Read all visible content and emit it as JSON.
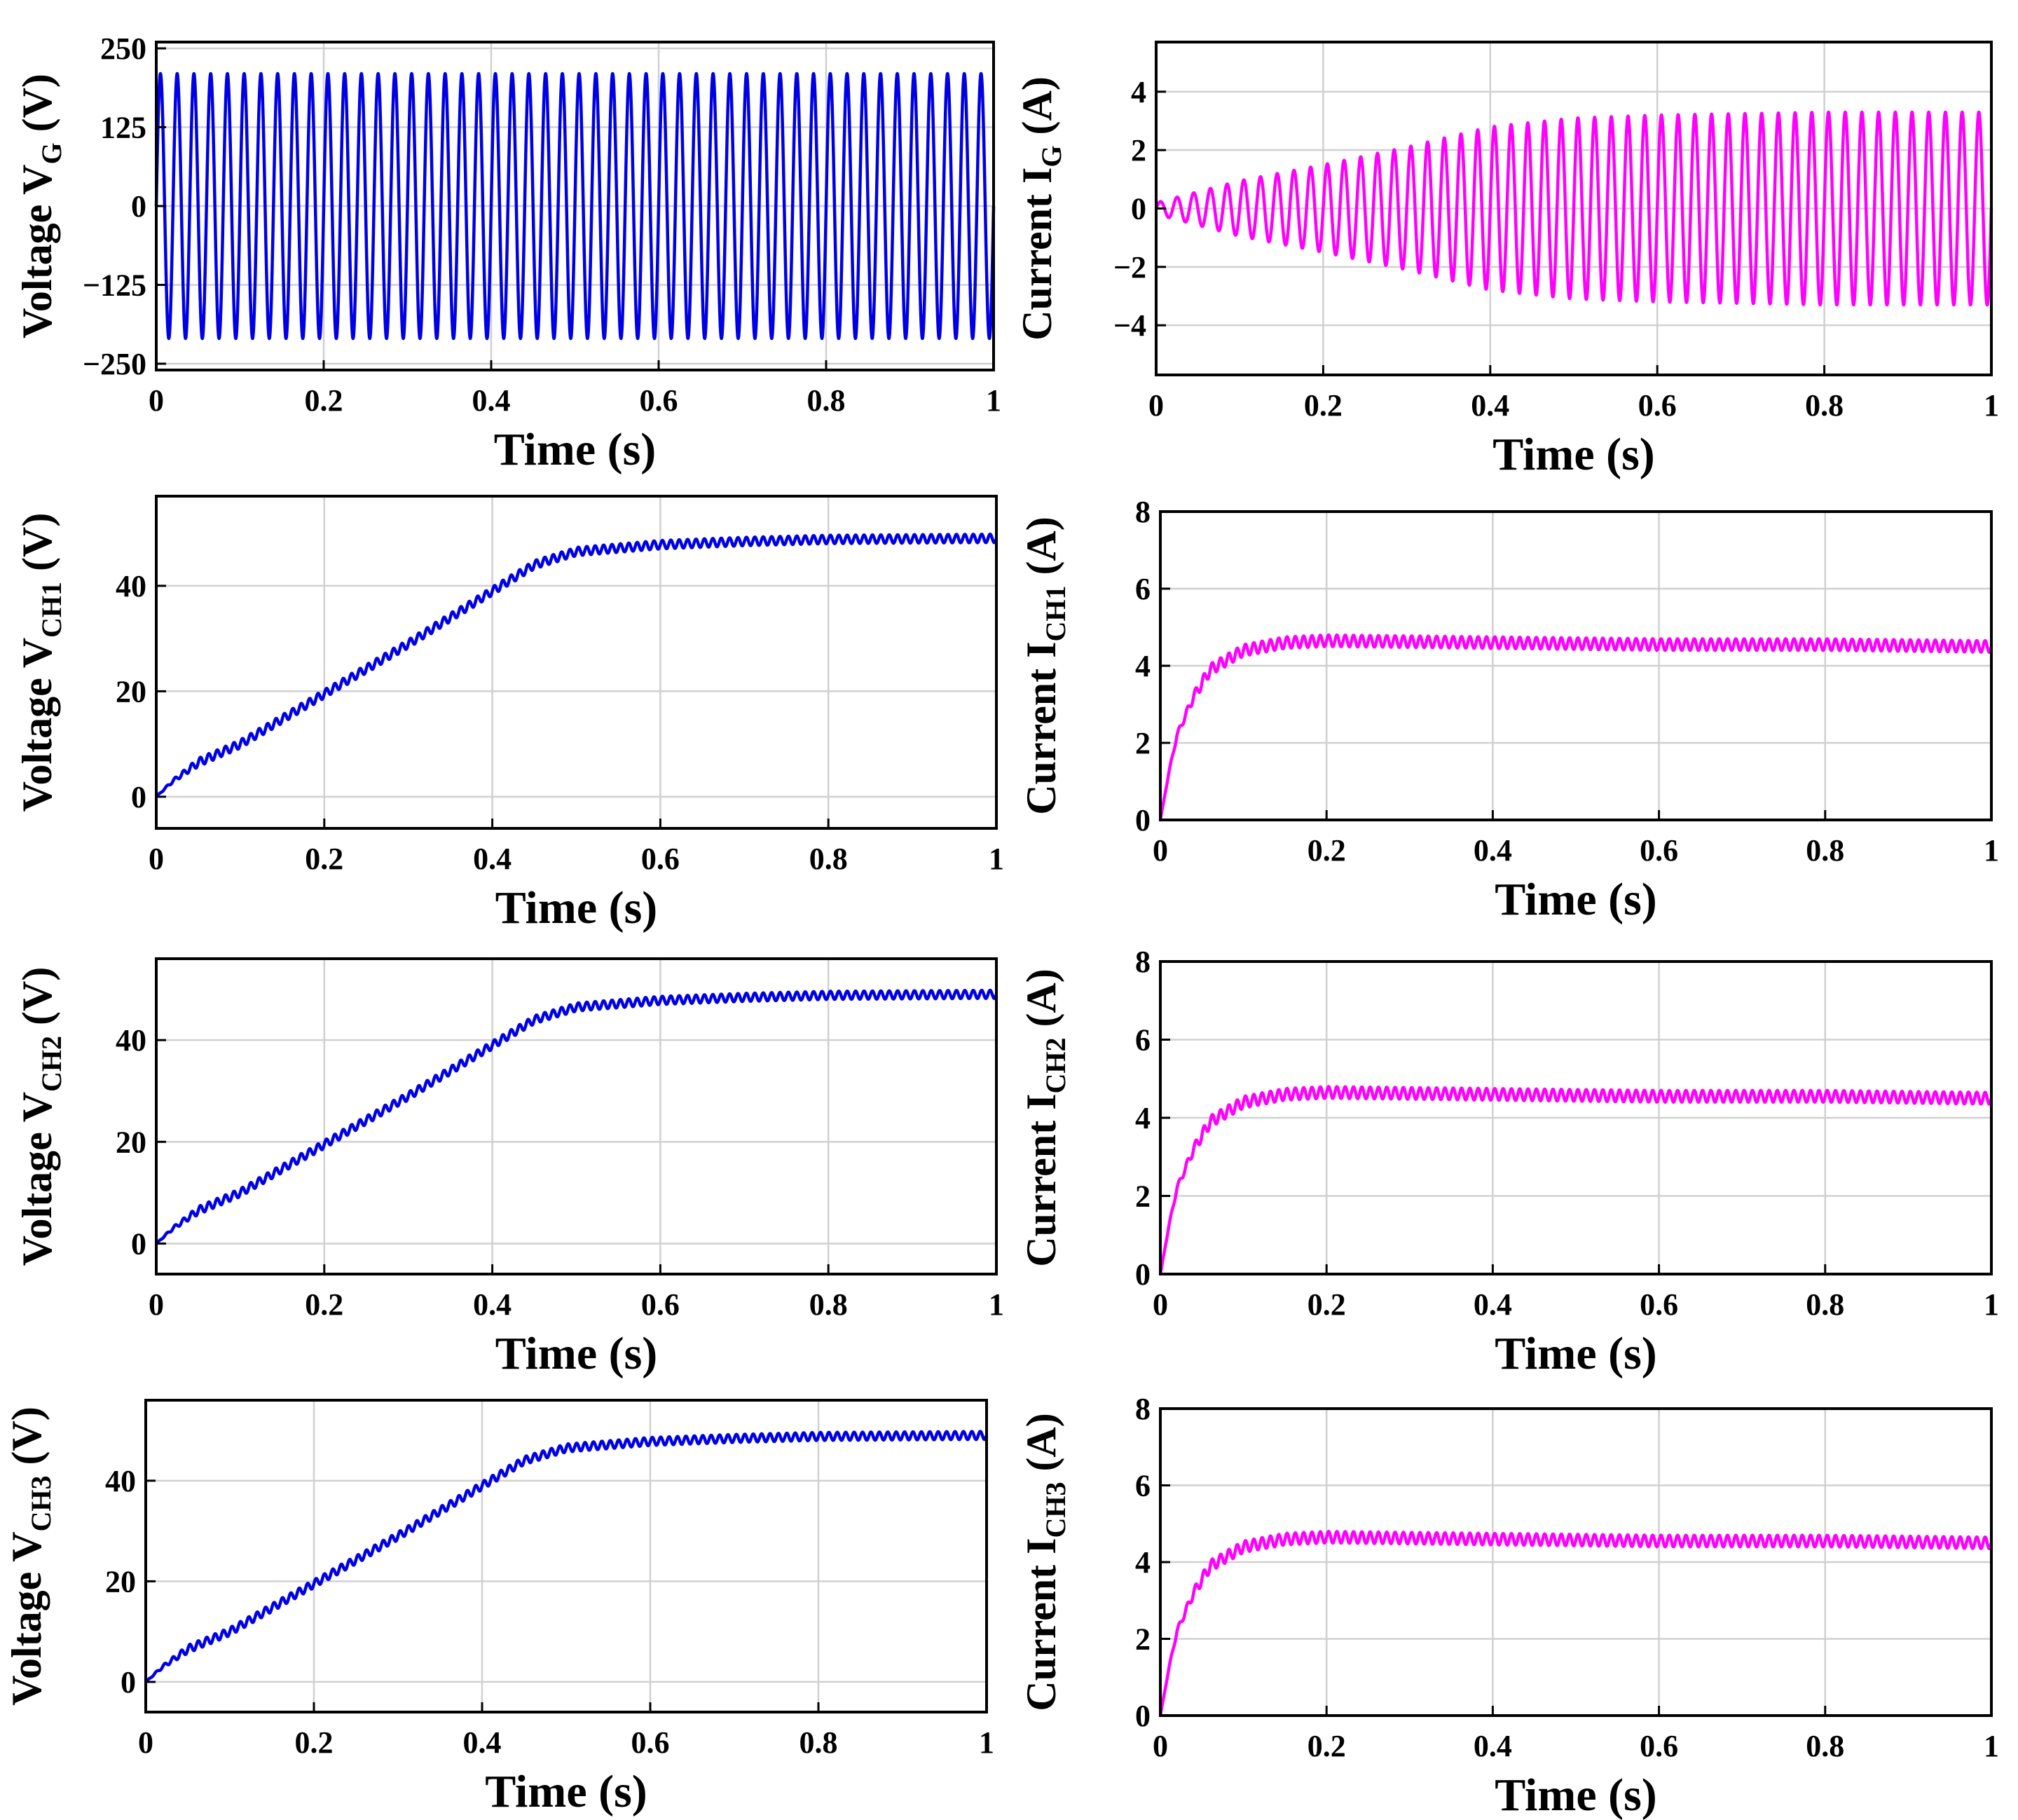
{
  "chart_data": [
    {
      "type": "line",
      "id": "vg",
      "ylabel": {
        "base": "Voltage V",
        "sub": "G",
        "unit": " (V)"
      },
      "xlabel": "Time (s)",
      "xlim": [
        0,
        1
      ],
      "ylim": [
        -260,
        260
      ],
      "xticks": [
        0,
        0.2,
        0.4,
        0.6,
        0.8,
        1
      ],
      "xtick_labels": [
        "0",
        "0.2",
        "0.4",
        "0.6",
        "0.8",
        "1"
      ],
      "yticks": [
        250,
        125,
        0,
        -125,
        -250
      ],
      "ytick_labels": [
        "250",
        "125",
        "0",
        "−125",
        "−250"
      ],
      "color": "#0000e6",
      "signal": {
        "kind": "sine",
        "amplitude": 210,
        "frequency_hz": 50,
        "cycles": 50
      }
    },
    {
      "type": "line",
      "id": "ig",
      "ylabel": {
        "base": "Current I",
        "sub": "G",
        "unit": " (A)"
      },
      "xlabel": "Time (s)",
      "xlim": [
        0,
        1
      ],
      "ylim": [
        -5.7,
        5.7
      ],
      "xticks": [
        0,
        0.2,
        0.4,
        0.6,
        0.8,
        1
      ],
      "xtick_labels": [
        "0",
        "0.2",
        "0.4",
        "0.6",
        "0.8",
        "1"
      ],
      "yticks": [
        4,
        2,
        0,
        -2,
        -4
      ],
      "ytick_labels": [
        "4",
        "2",
        "0",
        "−2",
        "−4"
      ],
      "color": "#ff00ff",
      "signal": {
        "kind": "growing-sine",
        "frequency_hz": 50,
        "amplitude_envelope": {
          "t": [
            0,
            0.1,
            0.2,
            0.3,
            0.4,
            0.5,
            0.6,
            0.7,
            0.8,
            1.0
          ],
          "a": [
            0.2,
            0.95,
            1.5,
            2.1,
            2.8,
            3.1,
            3.2,
            3.25,
            3.3,
            3.3
          ]
        }
      }
    },
    {
      "type": "line",
      "id": "vch1",
      "ylabel": {
        "base": "Voltage V",
        "sub": "CH1",
        "unit": " (V)"
      },
      "xlabel": "Time (s)",
      "xlim": [
        0,
        1
      ],
      "ylim": [
        -6,
        57
      ],
      "xticks": [
        0,
        0.2,
        0.4,
        0.6,
        0.8,
        1
      ],
      "xtick_labels": [
        "0",
        "0.2",
        "0.4",
        "0.6",
        "0.8",
        "1"
      ],
      "yticks": [
        0,
        20,
        40
      ],
      "ytick_labels": [
        "0",
        "20",
        "40"
      ],
      "color": "#0000e6",
      "signal": {
        "kind": "ramp",
        "t": [
          0,
          0.02,
          0.05,
          0.1,
          0.2,
          0.3,
          0.4,
          0.45,
          0.5,
          0.6,
          0.7,
          0.8,
          1.0
        ],
        "y": [
          0,
          3,
          6.5,
          10,
          19.5,
          29,
          39,
          44,
          46.5,
          47.8,
          48.4,
          48.8,
          49
        ],
        "ripple": 0.8
      }
    },
    {
      "type": "line",
      "id": "ich1",
      "ylabel": {
        "base": "Current I",
        "sub": "CH1",
        "unit": " (A)"
      },
      "xlabel": "Time (s)",
      "xlim": [
        0,
        1
      ],
      "ylim": [
        0,
        8
      ],
      "xticks": [
        0,
        0.2,
        0.4,
        0.6,
        0.8,
        1
      ],
      "xtick_labels": [
        "0",
        "0.2",
        "0.4",
        "0.6",
        "0.8",
        "1"
      ],
      "yticks": [
        0,
        2,
        4,
        6,
        8
      ],
      "ytick_labels": [
        "0",
        "2",
        "4",
        "6",
        "8"
      ],
      "color": "#ff00ff",
      "signal": {
        "kind": "step",
        "t": [
          0,
          0.01,
          0.02,
          0.04,
          0.06,
          0.1,
          0.15,
          0.2,
          0.4,
          0.6,
          0.8,
          1.0
        ],
        "y": [
          0,
          1.2,
          2.2,
          3.2,
          3.9,
          4.4,
          4.6,
          4.65,
          4.6,
          4.55,
          4.55,
          4.5
        ],
        "ripple": 0.15
      }
    },
    {
      "type": "line",
      "id": "vch2",
      "ylabel": {
        "base": "Voltage V",
        "sub": "CH2",
        "unit": " (V)"
      },
      "xlabel": "Time (s)",
      "xlim": [
        0,
        1
      ],
      "ylim": [
        -6,
        56
      ],
      "xticks": [
        0,
        0.2,
        0.4,
        0.6,
        0.8,
        1
      ],
      "xtick_labels": [
        "0",
        "0.2",
        "0.4",
        "0.6",
        "0.8",
        "1"
      ],
      "yticks": [
        0,
        20,
        40
      ],
      "ytick_labels": [
        "0",
        "20",
        "40"
      ],
      "color": "#0000e6",
      "signal": {
        "kind": "ramp",
        "t": [
          0,
          0.02,
          0.05,
          0.1,
          0.2,
          0.3,
          0.4,
          0.45,
          0.5,
          0.6,
          0.7,
          0.8,
          1.0
        ],
        "y": [
          0,
          3,
          6.5,
          10,
          19.5,
          29,
          39,
          44,
          46.5,
          47.8,
          48.4,
          48.8,
          49
        ],
        "ripple": 0.8
      }
    },
    {
      "type": "line",
      "id": "ich2",
      "ylabel": {
        "base": "Current I",
        "sub": "CH2",
        "unit": " (A)"
      },
      "xlabel": "Time (s)",
      "xlim": [
        0,
        1
      ],
      "ylim": [
        0,
        8
      ],
      "xticks": [
        0,
        0.2,
        0.4,
        0.6,
        0.8,
        1
      ],
      "xtick_labels": [
        "0",
        "0.2",
        "0.4",
        "0.6",
        "0.8",
        "1"
      ],
      "yticks": [
        0,
        2,
        4,
        6,
        8
      ],
      "ytick_labels": [
        "0",
        "2",
        "4",
        "6",
        "8"
      ],
      "color": "#ff00ff",
      "signal": {
        "kind": "step",
        "t": [
          0,
          0.01,
          0.02,
          0.04,
          0.06,
          0.1,
          0.15,
          0.2,
          0.4,
          0.6,
          0.8,
          1.0
        ],
        "y": [
          0,
          1.2,
          2.2,
          3.2,
          3.9,
          4.4,
          4.6,
          4.65,
          4.6,
          4.55,
          4.55,
          4.5
        ],
        "ripple": 0.15
      }
    },
    {
      "type": "line",
      "id": "vch3",
      "ylabel": {
        "base": "Voltage V",
        "sub": "CH3",
        "unit": " (V)"
      },
      "xlabel": "Time (s)",
      "xlim": [
        0,
        1
      ],
      "ylim": [
        -6,
        56
      ],
      "xticks": [
        0,
        0.2,
        0.4,
        0.6,
        0.8,
        1
      ],
      "xtick_labels": [
        "0",
        "0.2",
        "0.4",
        "0.6",
        "0.8",
        "1"
      ],
      "yticks": [
        0,
        20,
        40
      ],
      "ytick_labels": [
        "0",
        "20",
        "40"
      ],
      "color": "#0000e6",
      "signal": {
        "kind": "ramp",
        "t": [
          0,
          0.02,
          0.05,
          0.1,
          0.2,
          0.3,
          0.4,
          0.45,
          0.5,
          0.6,
          0.7,
          0.8,
          1.0
        ],
        "y": [
          0,
          3,
          6.5,
          10,
          19.5,
          29,
          39,
          44,
          46.5,
          47.8,
          48.4,
          48.8,
          49
        ],
        "ripple": 0.8
      }
    },
    {
      "type": "line",
      "id": "ich3",
      "ylabel": {
        "base": "Current I",
        "sub": "CH3",
        "unit": " (A)"
      },
      "xlabel": "Time (s)",
      "xlim": [
        0,
        1
      ],
      "ylim": [
        0,
        8
      ],
      "xticks": [
        0,
        0.2,
        0.4,
        0.6,
        0.8,
        1
      ],
      "xtick_labels": [
        "0",
        "0.2",
        "0.4",
        "0.6",
        "0.8",
        "1"
      ],
      "yticks": [
        0,
        2,
        4,
        6,
        8
      ],
      "ytick_labels": [
        "0",
        "2",
        "4",
        "6",
        "8"
      ],
      "color": "#ff00ff",
      "signal": {
        "kind": "step",
        "t": [
          0,
          0.01,
          0.02,
          0.04,
          0.06,
          0.1,
          0.15,
          0.2,
          0.4,
          0.6,
          0.8,
          1.0
        ],
        "y": [
          0,
          1.2,
          2.2,
          3.2,
          3.9,
          4.4,
          4.6,
          4.65,
          4.6,
          4.55,
          4.55,
          4.5
        ],
        "ripple": 0.15
      }
    }
  ]
}
